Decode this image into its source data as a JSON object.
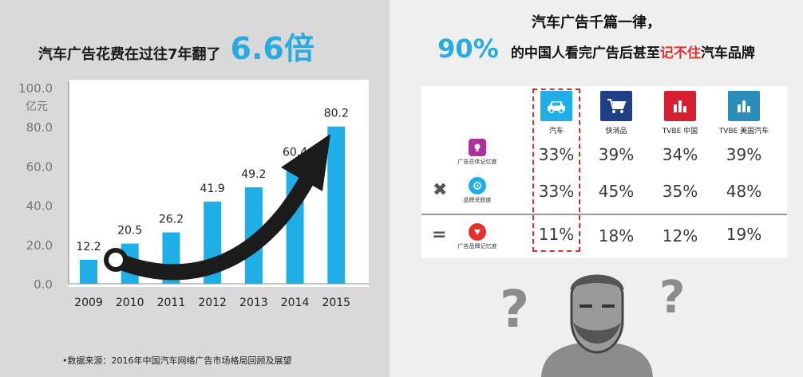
{
  "left": {
    "title_text": "汽车广告花费在过往7年翻了",
    "title_highlight": "6.6倍",
    "source": "•数据来源：2016年中国汽车网络广告市场格局回顾及展望"
  },
  "chart_data": {
    "type": "bar",
    "categories": [
      "2009",
      "2010",
      "2011",
      "2012",
      "2013",
      "2014",
      "2015"
    ],
    "values": [
      12.2,
      20.5,
      26.2,
      41.9,
      49.2,
      60.4,
      80.2
    ],
    "data_labels": [
      "12.2",
      "20.5",
      "26.2",
      "41.9",
      "49.2",
      "60.4",
      "80.2"
    ],
    "ylabel": "亿元",
    "ylim": [
      0,
      100
    ],
    "yticks": [
      "0.0",
      "20.0",
      "40.0",
      "60.0",
      "80.0",
      "100.0"
    ],
    "bar_color": "#1eaee8",
    "grid": false,
    "legend": "none"
  },
  "right": {
    "title_line1": "汽车广告千篇一律，",
    "title_pct": "90%",
    "title_part1": "的中国人看完广告后甚至",
    "title_red": "记不住",
    "title_part2": "汽车品牌",
    "columns": [
      {
        "label": "汽车",
        "icon": "car-icon",
        "color": "#1eaee8"
      },
      {
        "label": "快消品",
        "icon": "cart-icon",
        "color": "#1f3f86"
      },
      {
        "label": "TVBE 中国",
        "icon": "bar-chart-icon",
        "color": "#d62032"
      },
      {
        "label": "TVBE 美国汽车",
        "icon": "bar-chart-icon",
        "color": "#2a8dbb"
      }
    ],
    "rows": [
      {
        "label": "广告总体记忆度",
        "icon": "memory-icon",
        "color": "#b02fa0",
        "values": [
          "33%",
          "39%",
          "34%",
          "39%"
        ]
      },
      {
        "label": "品牌关联度",
        "icon": "brand-icon",
        "color": "#1eaee8",
        "values": [
          "33%",
          "45%",
          "35%",
          "48%"
        ]
      },
      {
        "label": "广告品牌记忆度",
        "icon": "brand-memory-icon",
        "color": "#e8302b",
        "values": [
          "11%",
          "18%",
          "12%",
          "19%"
        ]
      }
    ],
    "op_multiply": "✖",
    "op_equals": "="
  }
}
